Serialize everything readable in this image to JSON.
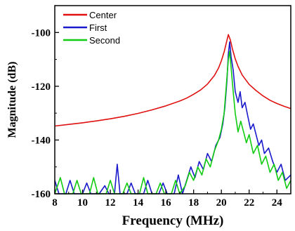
{
  "chart_data": {
    "type": "line",
    "title": "",
    "xlabel": "Frequency (MHz)",
    "ylabel": "Magnitude (dB)",
    "xlim": [
      8,
      25
    ],
    "ylim": [
      -160,
      -90
    ],
    "x_ticks": [
      8,
      10,
      12,
      14,
      16,
      18,
      20,
      22,
      24
    ],
    "y_ticks": [
      -100,
      -120,
      -140,
      -160
    ],
    "grid": false,
    "legend_position": "top-left",
    "series": [
      {
        "name": "Center",
        "color": "#e01010",
        "points": [
          [
            8,
            -134.8
          ],
          [
            9,
            -134.2
          ],
          [
            10,
            -133.6
          ],
          [
            11,
            -132.9
          ],
          [
            12,
            -132.1
          ],
          [
            13,
            -131.2
          ],
          [
            14,
            -130.1
          ],
          [
            15,
            -128.8
          ],
          [
            16,
            -127.3
          ],
          [
            17,
            -125.5
          ],
          [
            17.5,
            -124.4
          ],
          [
            18,
            -123.0
          ],
          [
            18.5,
            -121.4
          ],
          [
            19,
            -119.2
          ],
          [
            19.5,
            -116.0
          ],
          [
            19.8,
            -113.2
          ],
          [
            20,
            -110.5
          ],
          [
            20.2,
            -107.2
          ],
          [
            20.35,
            -104.0
          ],
          [
            20.5,
            -100.8
          ],
          [
            20.65,
            -102.8
          ],
          [
            20.8,
            -106.2
          ],
          [
            21,
            -109.8
          ],
          [
            21.2,
            -112.6
          ],
          [
            21.5,
            -115.8
          ],
          [
            22,
            -119.3
          ],
          [
            22.5,
            -121.6
          ],
          [
            23,
            -123.6
          ],
          [
            23.5,
            -125.2
          ],
          [
            24,
            -126.4
          ],
          [
            24.5,
            -127.4
          ],
          [
            25,
            -128.3
          ]
        ]
      },
      {
        "name": "First",
        "color": "#1a1acc",
        "points": [
          [
            8,
            -155
          ],
          [
            8.3,
            -160
          ],
          [
            8.8,
            -160
          ],
          [
            9.1,
            -155
          ],
          [
            9.4,
            -160
          ],
          [
            10.0,
            -160
          ],
          [
            10.3,
            -156
          ],
          [
            10.6,
            -160
          ],
          [
            11.2,
            -160
          ],
          [
            11.6,
            -157
          ],
          [
            11.9,
            -160
          ],
          [
            12.3,
            -160
          ],
          [
            12.5,
            -149
          ],
          [
            12.7,
            -160
          ],
          [
            13.2,
            -160
          ],
          [
            13.5,
            -156
          ],
          [
            13.8,
            -160
          ],
          [
            14.4,
            -160
          ],
          [
            14.7,
            -155
          ],
          [
            15.0,
            -160
          ],
          [
            15.5,
            -160
          ],
          [
            15.8,
            -156
          ],
          [
            16.1,
            -160
          ],
          [
            16.6,
            -160
          ],
          [
            16.9,
            -153
          ],
          [
            17.2,
            -160
          ],
          [
            17.5,
            -155
          ],
          [
            17.8,
            -150
          ],
          [
            18.1,
            -154
          ],
          [
            18.4,
            -148
          ],
          [
            18.7,
            -151
          ],
          [
            19.0,
            -145
          ],
          [
            19.3,
            -148
          ],
          [
            19.6,
            -142
          ],
          [
            19.9,
            -139
          ],
          [
            20.1,
            -134
          ],
          [
            20.25,
            -128
          ],
          [
            20.4,
            -118
          ],
          [
            20.5,
            -108
          ],
          [
            20.6,
            -103.5
          ],
          [
            20.7,
            -109
          ],
          [
            20.85,
            -114
          ],
          [
            21.0,
            -122
          ],
          [
            21.2,
            -126
          ],
          [
            21.35,
            -122
          ],
          [
            21.5,
            -128
          ],
          [
            21.7,
            -126
          ],
          [
            21.9,
            -131
          ],
          [
            22.1,
            -136
          ],
          [
            22.3,
            -134
          ],
          [
            22.5,
            -138
          ],
          [
            22.7,
            -142
          ],
          [
            22.9,
            -140
          ],
          [
            23.1,
            -145
          ],
          [
            23.4,
            -143
          ],
          [
            23.7,
            -148
          ],
          [
            24.0,
            -152
          ],
          [
            24.3,
            -149
          ],
          [
            24.6,
            -155
          ],
          [
            25,
            -153
          ]
        ]
      },
      {
        "name": "Second",
        "color": "#10cc10",
        "points": [
          [
            8,
            -160
          ],
          [
            8.4,
            -154
          ],
          [
            8.7,
            -160
          ],
          [
            9.3,
            -160
          ],
          [
            9.6,
            -155
          ],
          [
            9.9,
            -160
          ],
          [
            10.5,
            -160
          ],
          [
            10.8,
            -154
          ],
          [
            11.1,
            -160
          ],
          [
            11.7,
            -160
          ],
          [
            12.0,
            -155
          ],
          [
            12.3,
            -160
          ],
          [
            12.9,
            -160
          ],
          [
            13.2,
            -156
          ],
          [
            13.5,
            -160
          ],
          [
            14.1,
            -160
          ],
          [
            14.4,
            -154
          ],
          [
            14.7,
            -160
          ],
          [
            15.3,
            -160
          ],
          [
            15.6,
            -156
          ],
          [
            15.9,
            -160
          ],
          [
            16.4,
            -160
          ],
          [
            16.7,
            -155
          ],
          [
            17.0,
            -160
          ],
          [
            17.4,
            -157
          ],
          [
            17.7,
            -152
          ],
          [
            18.0,
            -155
          ],
          [
            18.3,
            -150
          ],
          [
            18.6,
            -153
          ],
          [
            18.9,
            -147
          ],
          [
            19.2,
            -150
          ],
          [
            19.5,
            -144
          ],
          [
            19.8,
            -140
          ],
          [
            20.0,
            -136
          ],
          [
            20.2,
            -130
          ],
          [
            20.35,
            -120
          ],
          [
            20.5,
            -110
          ],
          [
            20.6,
            -107
          ],
          [
            20.7,
            -113
          ],
          [
            20.85,
            -122
          ],
          [
            21.0,
            -130
          ],
          [
            21.2,
            -137
          ],
          [
            21.4,
            -133
          ],
          [
            21.6,
            -137
          ],
          [
            21.8,
            -141
          ],
          [
            22.0,
            -138
          ],
          [
            22.3,
            -145
          ],
          [
            22.6,
            -142
          ],
          [
            22.9,
            -149
          ],
          [
            23.2,
            -146
          ],
          [
            23.5,
            -152
          ],
          [
            23.8,
            -149
          ],
          [
            24.1,
            -155
          ],
          [
            24.4,
            -152
          ],
          [
            24.7,
            -158
          ],
          [
            25,
            -155
          ]
        ]
      }
    ]
  }
}
